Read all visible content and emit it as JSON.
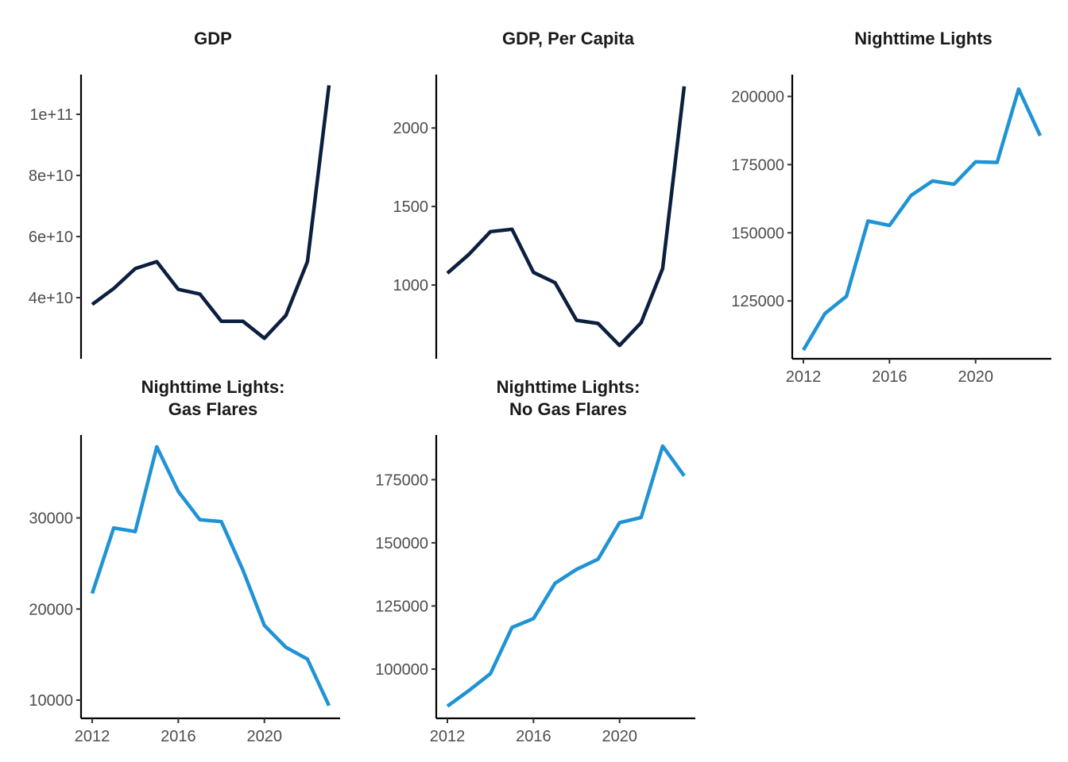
{
  "chart_data": [
    {
      "type": "line",
      "title": "GDP",
      "color": "#0b1f3e",
      "x": [
        2012,
        2013,
        2014,
        2015,
        2016,
        2017,
        2018,
        2019,
        2020,
        2021,
        2022,
        2023
      ],
      "values": [
        37800000000.0,
        43000000000.0,
        49500000000.0,
        51800000000.0,
        42700000000.0,
        41200000000.0,
        32300000000.0,
        32300000000.0,
        26700000000.0,
        34200000000.0,
        51800000000.0,
        109500000000.0
      ],
      "yticks": [
        40000000000.0,
        60000000000.0,
        80000000000.0,
        100000000000.0
      ],
      "ytick_labels": [
        "4e+10",
        "6e+10",
        "8e+10",
        "1e+11"
      ],
      "xticks": [],
      "xtick_labels": [],
      "xlim": [
        2011.9,
        2023.1
      ],
      "ylim": [
        20000000000.0,
        113000000000.0
      ]
    },
    {
      "type": "line",
      "title": "GDP, Per Capita",
      "color": "#0b1f3e",
      "x": [
        2012,
        2013,
        2014,
        2015,
        2016,
        2017,
        2018,
        2019,
        2020,
        2021,
        2022,
        2023
      ],
      "values": [
        1075,
        1195,
        1340,
        1355,
        1080,
        1015,
        775,
        755,
        615,
        760,
        1105,
        2265
      ],
      "yticks": [
        1000,
        1500,
        2000
      ],
      "ytick_labels": [
        "1000",
        "1500",
        "2000"
      ],
      "xticks": [],
      "xtick_labels": [],
      "xlim": [
        2011.9,
        2023.1
      ],
      "ylim": [
        530,
        2340
      ]
    },
    {
      "type": "line",
      "title": "Nighttime Lights",
      "color": "#1f93d4",
      "x": [
        2012,
        2013,
        2014,
        2015,
        2016,
        2017,
        2018,
        2019,
        2020,
        2021,
        2022,
        2023
      ],
      "values": [
        107000,
        120400,
        126700,
        154300,
        152700,
        163700,
        169000,
        167800,
        176000,
        175800,
        202700,
        185600
      ],
      "yticks": [
        125000,
        150000,
        175000,
        200000
      ],
      "ytick_labels": [
        "125000",
        "150000",
        "175000",
        "200000"
      ],
      "xticks": [
        2012,
        2016,
        2020
      ],
      "xtick_labels": [
        "2012",
        "2016",
        "2020"
      ],
      "xlim": [
        2011.9,
        2023.1
      ],
      "ylim": [
        103800,
        208000
      ]
    },
    {
      "type": "line",
      "title": "Nighttime Lights:\nGas Flares",
      "color": "#1f93d4",
      "x": [
        2012,
        2013,
        2014,
        2015,
        2016,
        2017,
        2018,
        2019,
        2020,
        2021,
        2022,
        2023
      ],
      "values": [
        21700,
        28900,
        28500,
        37800,
        32900,
        29800,
        29600,
        24300,
        18200,
        15800,
        14500,
        9400
      ],
      "yticks": [
        10000,
        20000,
        30000
      ],
      "ytick_labels": [
        "10000",
        "20000",
        "30000"
      ],
      "xticks": [
        2012,
        2016,
        2020
      ],
      "xtick_labels": [
        "2012",
        "2016",
        "2020"
      ],
      "xlim": [
        2011.9,
        2023.1
      ],
      "ylim": [
        8000,
        39100
      ]
    },
    {
      "type": "line",
      "title": "Nighttime Lights:\nNo Gas Flares",
      "color": "#1f93d4",
      "x": [
        2012,
        2013,
        2014,
        2015,
        2016,
        2017,
        2018,
        2019,
        2020,
        2021,
        2022,
        2023
      ],
      "values": [
        85300,
        91500,
        98200,
        116500,
        120000,
        134000,
        139500,
        143500,
        158000,
        160000,
        188300,
        176500
      ],
      "yticks": [
        100000,
        125000,
        150000,
        175000
      ],
      "ytick_labels": [
        "100000",
        "125000",
        "150000",
        "175000"
      ],
      "xticks": [
        2012,
        2016,
        2020
      ],
      "xtick_labels": [
        "2012",
        "2016",
        "2020"
      ],
      "xlim": [
        2011.9,
        2023.1
      ],
      "ylim": [
        80500,
        192700
      ]
    }
  ]
}
